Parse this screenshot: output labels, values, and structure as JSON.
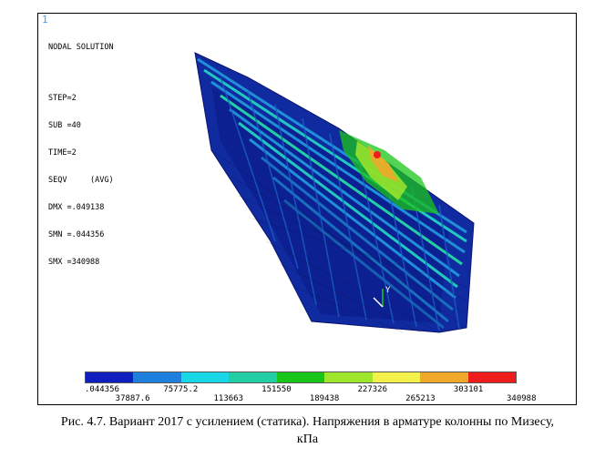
{
  "corner_number": "1",
  "solution": {
    "title": "NODAL SOLUTION",
    "lines": [
      "STEP=2",
      "SUB =40",
      "TIME=2",
      "SEQV     (AVG)",
      "DMX =.049138",
      "SMN =.044356",
      "SMX =340988"
    ]
  },
  "triad": {
    "axis_label": "Y"
  },
  "colorbar": {
    "colors": [
      "#0f1fbf",
      "#1f7fdc",
      "#18d8e8",
      "#22cfa4",
      "#1ac51a",
      "#9ee62c",
      "#f4f24a",
      "#f0a82a",
      "#ef1c1c"
    ],
    "labels": [
      ".044356",
      "37887.6",
      "75775.2",
      "113663",
      "151550",
      "189438",
      "227326",
      "265213",
      "303101",
      "340988"
    ]
  },
  "caption": {
    "line1": "Рис. 4.7. Вариант 2017 с усилением (статика). Напряжения в арматуре колонны по Мизесу,",
    "line2": "кПа"
  }
}
